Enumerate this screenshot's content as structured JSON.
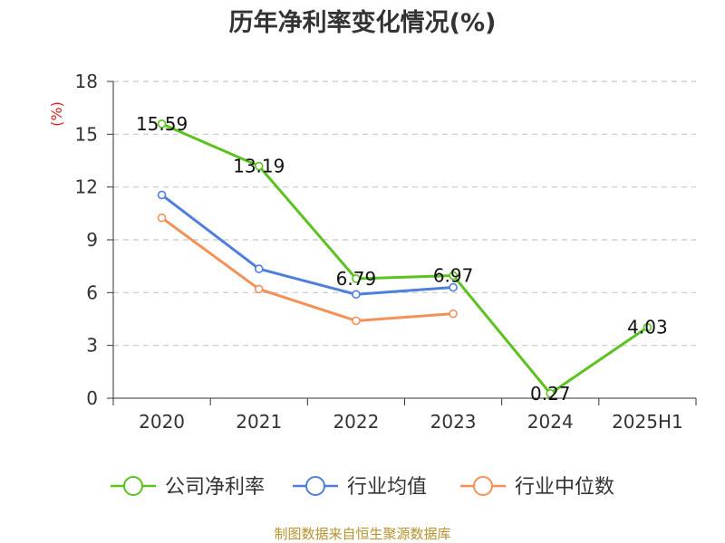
{
  "chart_data": {
    "type": "line",
    "title": "历年净利率变化情况(%)",
    "ylabel": "(%)",
    "categories": [
      "2020",
      "2021",
      "2022",
      "2023",
      "2024",
      "2025H1"
    ],
    "yticks": [
      "0",
      "3",
      "6",
      "9",
      "12",
      "15",
      "18"
    ],
    "ylim": [
      0,
      18
    ],
    "grid": true,
    "legend_position": "bottom",
    "series": [
      {
        "name": "公司净利率",
        "color": "#5bc21f",
        "values": [
          15.59,
          13.19,
          6.79,
          6.97,
          0.27,
          4.03
        ],
        "labels": [
          "15.59",
          "13.19",
          "6.79",
          "6.97",
          "0.27",
          "4.03"
        ]
      },
      {
        "name": "行业均值",
        "color": "#4f7fdc",
        "values": [
          11.55,
          7.35,
          5.9,
          6.3,
          null,
          null
        ]
      },
      {
        "name": "行业中位数",
        "color": "#f39158",
        "values": [
          10.25,
          6.2,
          4.4,
          4.8,
          null,
          null
        ]
      }
    ],
    "source": "制图数据来自恒生聚源数据库"
  }
}
